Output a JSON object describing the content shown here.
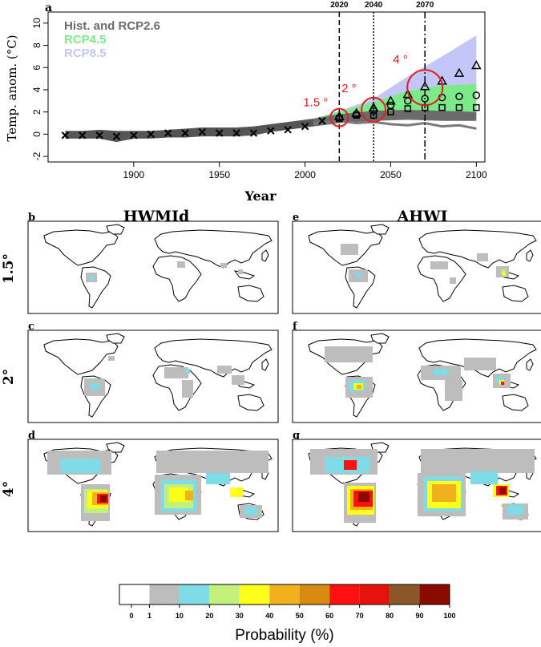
{
  "figure": {
    "panel_a_label": "a",
    "map_panel_labels": [
      "b",
      "c",
      "d",
      "e",
      "f",
      "g"
    ],
    "column_titles": [
      "HWMId",
      "AHWI"
    ],
    "row_labels": [
      "1.5°",
      "2°",
      "4°"
    ]
  },
  "chart_data": [
    {
      "type": "line",
      "title": "",
      "xlabel": "Year",
      "ylabel": "Temp. anom. (°C)",
      "xlim": [
        1850,
        2105
      ],
      "ylim": [
        -2.5,
        11
      ],
      "xticks": [
        "1900",
        "1950",
        "2000",
        "2050",
        "2100"
      ],
      "yticks": [
        "-2",
        "0",
        "2",
        "4",
        "6",
        "8",
        "10"
      ],
      "legend": [
        "Hist. and RCP2.6",
        "RCP4.5",
        "RCP8.5"
      ],
      "legend_colors": [
        "#6b6b6b",
        "#7dea8a",
        "#c4c6f7"
      ],
      "legend_placement": "top-left",
      "vlines": [
        {
          "x": 2020,
          "label": "2020",
          "style": "dashed"
        },
        {
          "x": 2040,
          "label": "2040",
          "style": "dotted"
        },
        {
          "x": 2070,
          "label": "2070",
          "style": "dashdot"
        }
      ],
      "annotations": [
        {
          "text": "1.5 °",
          "x": 2020,
          "y": 1.5,
          "color": "#e0201b"
        },
        {
          "text": "2 °",
          "x": 2040,
          "y": 2.2,
          "color": "#e0201b"
        },
        {
          "text": "4 °",
          "x": 2070,
          "y": 4.2,
          "color": "#e0201b"
        }
      ],
      "historical_band": {
        "x": [
          1860,
          1870,
          1880,
          1890,
          1900,
          1910,
          1920,
          1930,
          1940,
          1950,
          1960,
          1970,
          1980,
          1990,
          2000,
          2005
        ],
        "upper": [
          0.3,
          0.3,
          0.4,
          0.3,
          0.3,
          0.3,
          0.4,
          0.5,
          0.6,
          0.6,
          0.6,
          0.7,
          0.9,
          1.1,
          1.3,
          1.4
        ],
        "lower": [
          -0.4,
          -0.4,
          -0.4,
          -0.7,
          -0.4,
          -0.4,
          -0.3,
          -0.3,
          -0.2,
          -0.2,
          -0.2,
          -0.1,
          0.2,
          0.4,
          0.6,
          0.7
        ]
      },
      "scenario_bands": [
        {
          "name": "RCP8.5",
          "color": "#c4c6f7",
          "x": [
            2005,
            2020,
            2040,
            2060,
            2080,
            2100
          ],
          "upper": [
            1.4,
            2.1,
            3.2,
            5.2,
            7.0,
            8.9
          ],
          "lower": [
            0.7,
            1.0,
            1.6,
            2.4,
            3.0,
            3.6
          ]
        },
        {
          "name": "RCP4.5",
          "color": "#7dea8a",
          "x": [
            2005,
            2020,
            2040,
            2060,
            2080,
            2100
          ],
          "upper": [
            1.4,
            2.0,
            2.9,
            3.9,
            4.4,
            4.5
          ],
          "lower": [
            0.7,
            1.0,
            1.5,
            1.8,
            1.9,
            2.0
          ]
        },
        {
          "name": "Hist. and RCP2.6",
          "color": "#6b6b6b",
          "x": [
            2005,
            2020,
            2040,
            2060,
            2080,
            2100
          ],
          "upper": [
            1.4,
            1.8,
            2.1,
            2.2,
            2.1,
            2.0
          ],
          "lower": [
            0.7,
            1.0,
            1.2,
            1.3,
            1.2,
            1.2
          ]
        }
      ],
      "rcp26_line": {
        "x": [
          2005,
          2020,
          2030,
          2040,
          2050,
          2060,
          2070,
          2080,
          2090,
          2100
        ],
        "y": [
          1.0,
          1.2,
          1.0,
          1.1,
          0.9,
          0.8,
          1.0,
          0.7,
          0.8,
          0.5
        ]
      },
      "markers_x": {
        "x": [
          1860,
          1870,
          1880,
          1890,
          1900,
          1910,
          1920,
          1930,
          1940,
          1950,
          1960,
          1970,
          1980,
          1990,
          2000,
          2010
        ],
        "y": [
          -0.1,
          -0.1,
          -0.1,
          -0.2,
          -0.1,
          0.0,
          0.1,
          0.1,
          0.2,
          0.1,
          0.1,
          0.1,
          0.3,
          0.4,
          0.7,
          1.2
        ]
      },
      "markers_triangle": {
        "x": [
          2020,
          2030,
          2040,
          2050,
          2060,
          2070,
          2080,
          2090,
          2100
        ],
        "y": [
          1.6,
          1.9,
          2.4,
          3.0,
          3.6,
          4.3,
          4.8,
          5.5,
          6.2
        ]
      },
      "markers_circle": {
        "x": [
          2020,
          2030,
          2040,
          2050,
          2060,
          2070,
          2080,
          2090,
          2100
        ],
        "y": [
          1.5,
          1.8,
          2.1,
          2.6,
          3.0,
          3.2,
          3.3,
          3.4,
          3.5
        ]
      },
      "markers_square": {
        "x": [
          2020,
          2030,
          2040,
          2050,
          2060,
          2070,
          2080,
          2090,
          2100
        ],
        "y": [
          1.4,
          1.7,
          1.7,
          2.0,
          2.3,
          2.4,
          2.4,
          2.4,
          2.4
        ]
      },
      "highlight_circles": [
        {
          "x": 2020,
          "y": 1.5
        },
        {
          "x": 2040,
          "y": 2.2
        },
        {
          "x": 2070,
          "y": 4.2
        }
      ]
    },
    {
      "type": "heatmap",
      "xlabel": "Probability (%)",
      "legend_placement": "bottom",
      "bins": [
        {
          "from": 0,
          "to": 1,
          "color": "#ffffff"
        },
        {
          "from": 1,
          "to": 10,
          "color": "#bdbdbd"
        },
        {
          "from": 10,
          "to": 20,
          "color": "#7fdbe6"
        },
        {
          "from": 20,
          "to": 30,
          "color": "#c3f07a"
        },
        {
          "from": 30,
          "to": 40,
          "color": "#ffff1a"
        },
        {
          "from": 40,
          "to": 50,
          "color": "#f2b01c"
        },
        {
          "from": 50,
          "to": 60,
          "color": "#d98a10"
        },
        {
          "from": 60,
          "to": 70,
          "color": "#ff1010"
        },
        {
          "from": 70,
          "to": 80,
          "color": "#e8120c"
        },
        {
          "from": 80,
          "to": 90,
          "color": "#8b5628"
        },
        {
          "from": 90,
          "to": 100,
          "color": "#8b0a00"
        }
      ],
      "tick_labels": [
        "0",
        "1",
        "10",
        "20",
        "30",
        "40",
        "50",
        "60",
        "70",
        "80",
        "90",
        "100"
      ]
    }
  ]
}
